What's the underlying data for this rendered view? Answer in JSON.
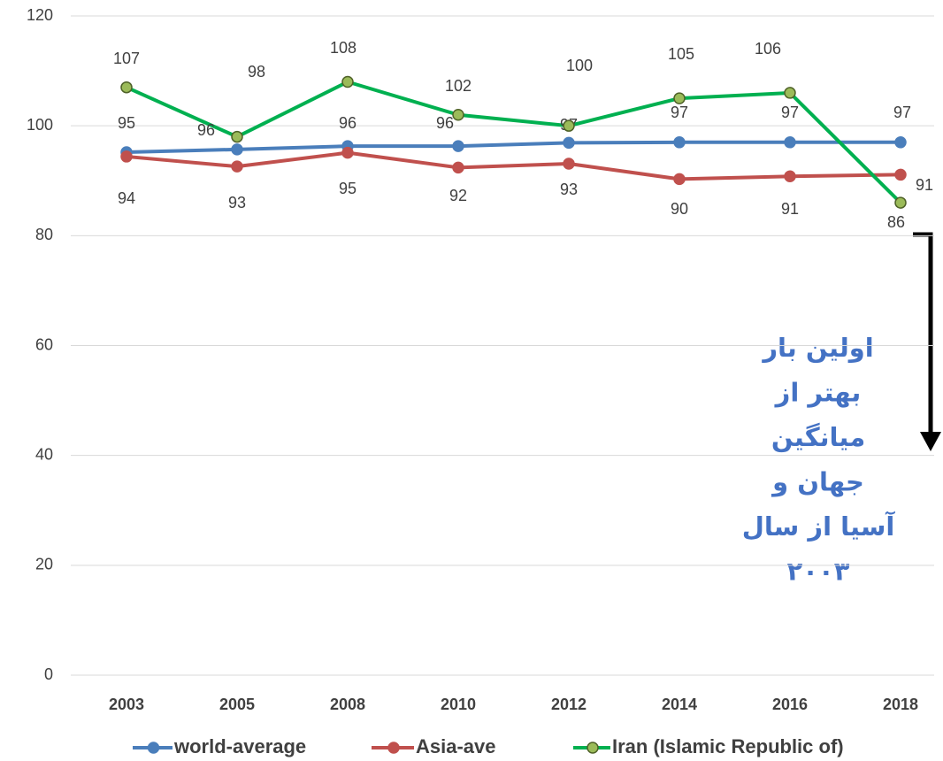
{
  "chart_data": {
    "type": "line",
    "categories": [
      "2003",
      "2005",
      "2008",
      "2010",
      "2012",
      "2014",
      "2016",
      "2018"
    ],
    "series": [
      {
        "name": "world-average",
        "color": "#4a7ebb",
        "marker": "#4a7ebb",
        "values": [
          95.2,
          95.7,
          96.3,
          96.3,
          96.9,
          97.0,
          97.0,
          97.0
        ],
        "value_labels": [
          "95",
          "96",
          "96",
          "96",
          "97",
          "97",
          "97",
          "97"
        ]
      },
      {
        "name": "Asia-ave",
        "color": "#c0504d",
        "marker": "#c0504d",
        "values": [
          94.4,
          92.6,
          95.1,
          92.4,
          93.1,
          90.3,
          90.8,
          91.1
        ],
        "value_labels": [
          "94",
          "93",
          "95",
          "92",
          "93",
          "90",
          "91",
          "91"
        ]
      },
      {
        "name": "Iran (Islamic Republic of)",
        "color": "#00b050",
        "marker": "#9bbb59",
        "values": [
          107,
          98,
          108,
          102,
          100,
          105,
          106,
          86
        ]
      }
    ],
    "ylim": [
      0,
      120
    ],
    "yticks": [
      0,
      20,
      40,
      60,
      80,
      100,
      120
    ],
    "grid": true,
    "annotation": [
      "اولین بار",
      "بهتر از",
      "میانگین",
      "جهان و",
      "آسیا از سال",
      "۲۰۰۳"
    ]
  }
}
